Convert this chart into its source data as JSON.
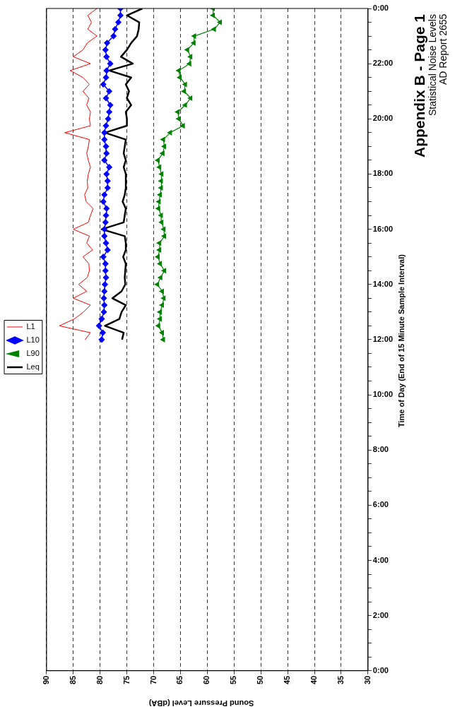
{
  "chart_data": {
    "type": "line",
    "orientation": "horizontal",
    "title": "Appendix B - Page 1",
    "subtitle": "Statistical Noise Levels",
    "annotations": [
      "AD Report 2655"
    ],
    "ylabel": "Time of Day (End of 15 Minute Sample Interval)",
    "xlabel": "Sound Pressure Level (dBA)",
    "x": [
      12,
      12.25,
      12.5,
      12.75,
      13,
      13.25,
      13.5,
      13.75,
      14,
      14.25,
      14.5,
      14.75,
      15,
      15.25,
      15.5,
      15.75,
      16,
      16.25,
      16.5,
      16.75,
      17,
      17.25,
      17.5,
      17.75,
      18,
      18.25,
      18.5,
      18.75,
      19,
      19.25,
      19.5,
      19.75,
      20,
      20.25,
      20.5,
      20.75,
      21,
      21.25,
      21.5,
      21.75,
      22,
      22.25,
      22.5,
      22.75,
      23,
      23.25,
      23.5,
      23.75,
      24
    ],
    "series": [
      {
        "name": "L1",
        "color": "#ff0000",
        "marker": "none",
        "values": [
          82.8,
          81.8,
          87.6,
          84.8,
          83.1,
          81.8,
          85.0,
          82.5,
          84.0,
          82.4,
          82.0,
          82.1,
          83.2,
          81.4,
          82.5,
          82.0,
          85.0,
          82.2,
          81.8,
          81.3,
          82.6,
          82.9,
          82.3,
          82.4,
          82.2,
          81.8,
          82.2,
          82.5,
          82.2,
          82.0,
          86.6,
          81.8,
          82.0,
          81.8,
          82.5,
          82.1,
          83.2,
          82.0,
          83.2,
          85.6,
          81.8,
          85.0,
          83.2,
          82.4,
          80.6,
          82.3,
          81.6,
          82.3,
          80.6
        ]
      },
      {
        "name": "L10",
        "color": "#0000ff",
        "marker": "diamond",
        "values": [
          79.7,
          79.5,
          80.2,
          79.7,
          79.3,
          79.2,
          79.3,
          79.2,
          79.1,
          78.9,
          79.0,
          79.0,
          79.4,
          78.6,
          78.9,
          79.2,
          79.2,
          79.0,
          78.9,
          78.8,
          79.4,
          79.2,
          78.6,
          78.6,
          78.8,
          78.3,
          79.2,
          78.8,
          78.9,
          79.2,
          79.2,
          78.9,
          78.5,
          78.3,
          78.1,
          78.9,
          78.3,
          79.4,
          78.9,
          78.8,
          78.1,
          78.8,
          79.0,
          78.7,
          77.5,
          77.2,
          76.6,
          76.2,
          76.2
        ]
      },
      {
        "name": "L90",
        "color": "#008000",
        "marker": "triangle",
        "values": [
          68.2,
          68.4,
          69.1,
          68.8,
          68.8,
          68.4,
          68.1,
          68.4,
          69.3,
          68.7,
          68.0,
          68.8,
          69.2,
          68.9,
          68.9,
          68.0,
          68.1,
          68.5,
          68.6,
          69.1,
          69.0,
          68.8,
          68.6,
          68.6,
          68.5,
          68.9,
          69.2,
          68.3,
          68.0,
          68.2,
          66.9,
          64.5,
          65.3,
          65.5,
          64.1,
          63.1,
          64.3,
          64.1,
          65.1,
          65.3,
          63.3,
          63.1,
          63.7,
          62.5,
          62.4,
          58.7,
          57.6,
          58.9,
          58.9
        ]
      },
      {
        "name": "Leq",
        "color": "#000000",
        "marker": "none",
        "values": [
          75.9,
          75.6,
          79.1,
          76.4,
          76.0,
          75.2,
          77.7,
          76.0,
          75.3,
          75.4,
          75.3,
          75.2,
          75.7,
          75.2,
          75.2,
          75.4,
          79.7,
          75.6,
          75.4,
          75.2,
          75.8,
          75.4,
          75.2,
          75.2,
          75.2,
          75.6,
          75.2,
          75.6,
          75.4,
          75.2,
          79.1,
          75.0,
          75.0,
          75.2,
          74.2,
          75.0,
          74.6,
          75.2,
          74.2,
          78.3,
          73.9,
          76.1,
          75.0,
          74.2,
          73.1,
          72.8,
          72.7,
          75.0,
          72.1
        ]
      }
    ],
    "ylim": [
      0,
      24
    ],
    "yticks": [
      {
        "value": 0,
        "label": "0:00"
      },
      {
        "value": 0.5,
        "label": null
      },
      {
        "value": 1,
        "label": null
      },
      {
        "value": 1.5,
        "label": null
      },
      {
        "value": 2,
        "label": "2:00"
      },
      {
        "value": 2.5,
        "label": null
      },
      {
        "value": 3,
        "label": null
      },
      {
        "value": 3.5,
        "label": null
      },
      {
        "value": 4,
        "label": "4:00"
      },
      {
        "value": 4.5,
        "label": null
      },
      {
        "value": 5,
        "label": null
      },
      {
        "value": 5.5,
        "label": null
      },
      {
        "value": 6,
        "label": "6:00"
      },
      {
        "value": 6.5,
        "label": null
      },
      {
        "value": 7,
        "label": null
      },
      {
        "value": 7.5,
        "label": null
      },
      {
        "value": 8,
        "label": "8:00"
      },
      {
        "value": 8.5,
        "label": null
      },
      {
        "value": 9,
        "label": null
      },
      {
        "value": 9.5,
        "label": null
      },
      {
        "value": 10,
        "label": "10:00"
      },
      {
        "value": 10.5,
        "label": null
      },
      {
        "value": 11,
        "label": null
      },
      {
        "value": 11.5,
        "label": null
      },
      {
        "value": 12,
        "label": "12:00"
      },
      {
        "value": 12.5,
        "label": null
      },
      {
        "value": 13,
        "label": null
      },
      {
        "value": 13.5,
        "label": null
      },
      {
        "value": 14,
        "label": "14:00"
      },
      {
        "value": 14.5,
        "label": null
      },
      {
        "value": 15,
        "label": null
      },
      {
        "value": 15.5,
        "label": null
      },
      {
        "value": 16,
        "label": "16:00"
      },
      {
        "value": 16.5,
        "label": null
      },
      {
        "value": 17,
        "label": null
      },
      {
        "value": 17.5,
        "label": null
      },
      {
        "value": 18,
        "label": "18:00"
      },
      {
        "value": 18.5,
        "label": null
      },
      {
        "value": 19,
        "label": null
      },
      {
        "value": 19.5,
        "label": null
      },
      {
        "value": 20,
        "label": "20:00"
      },
      {
        "value": 20.5,
        "label": null
      },
      {
        "value": 21,
        "label": null
      },
      {
        "value": 21.5,
        "label": null
      },
      {
        "value": 22,
        "label": "22:00"
      },
      {
        "value": 22.5,
        "label": null
      },
      {
        "value": 23,
        "label": null
      },
      {
        "value": 23.5,
        "label": null
      },
      {
        "value": 24,
        "label": "0:00"
      }
    ],
    "xlim": [
      90,
      30
    ],
    "xticks": [
      90,
      85,
      80,
      75,
      70,
      65,
      60,
      55,
      50,
      45,
      40,
      35,
      30
    ],
    "grid": "x",
    "legend": "left",
    "line_style": "solid"
  }
}
